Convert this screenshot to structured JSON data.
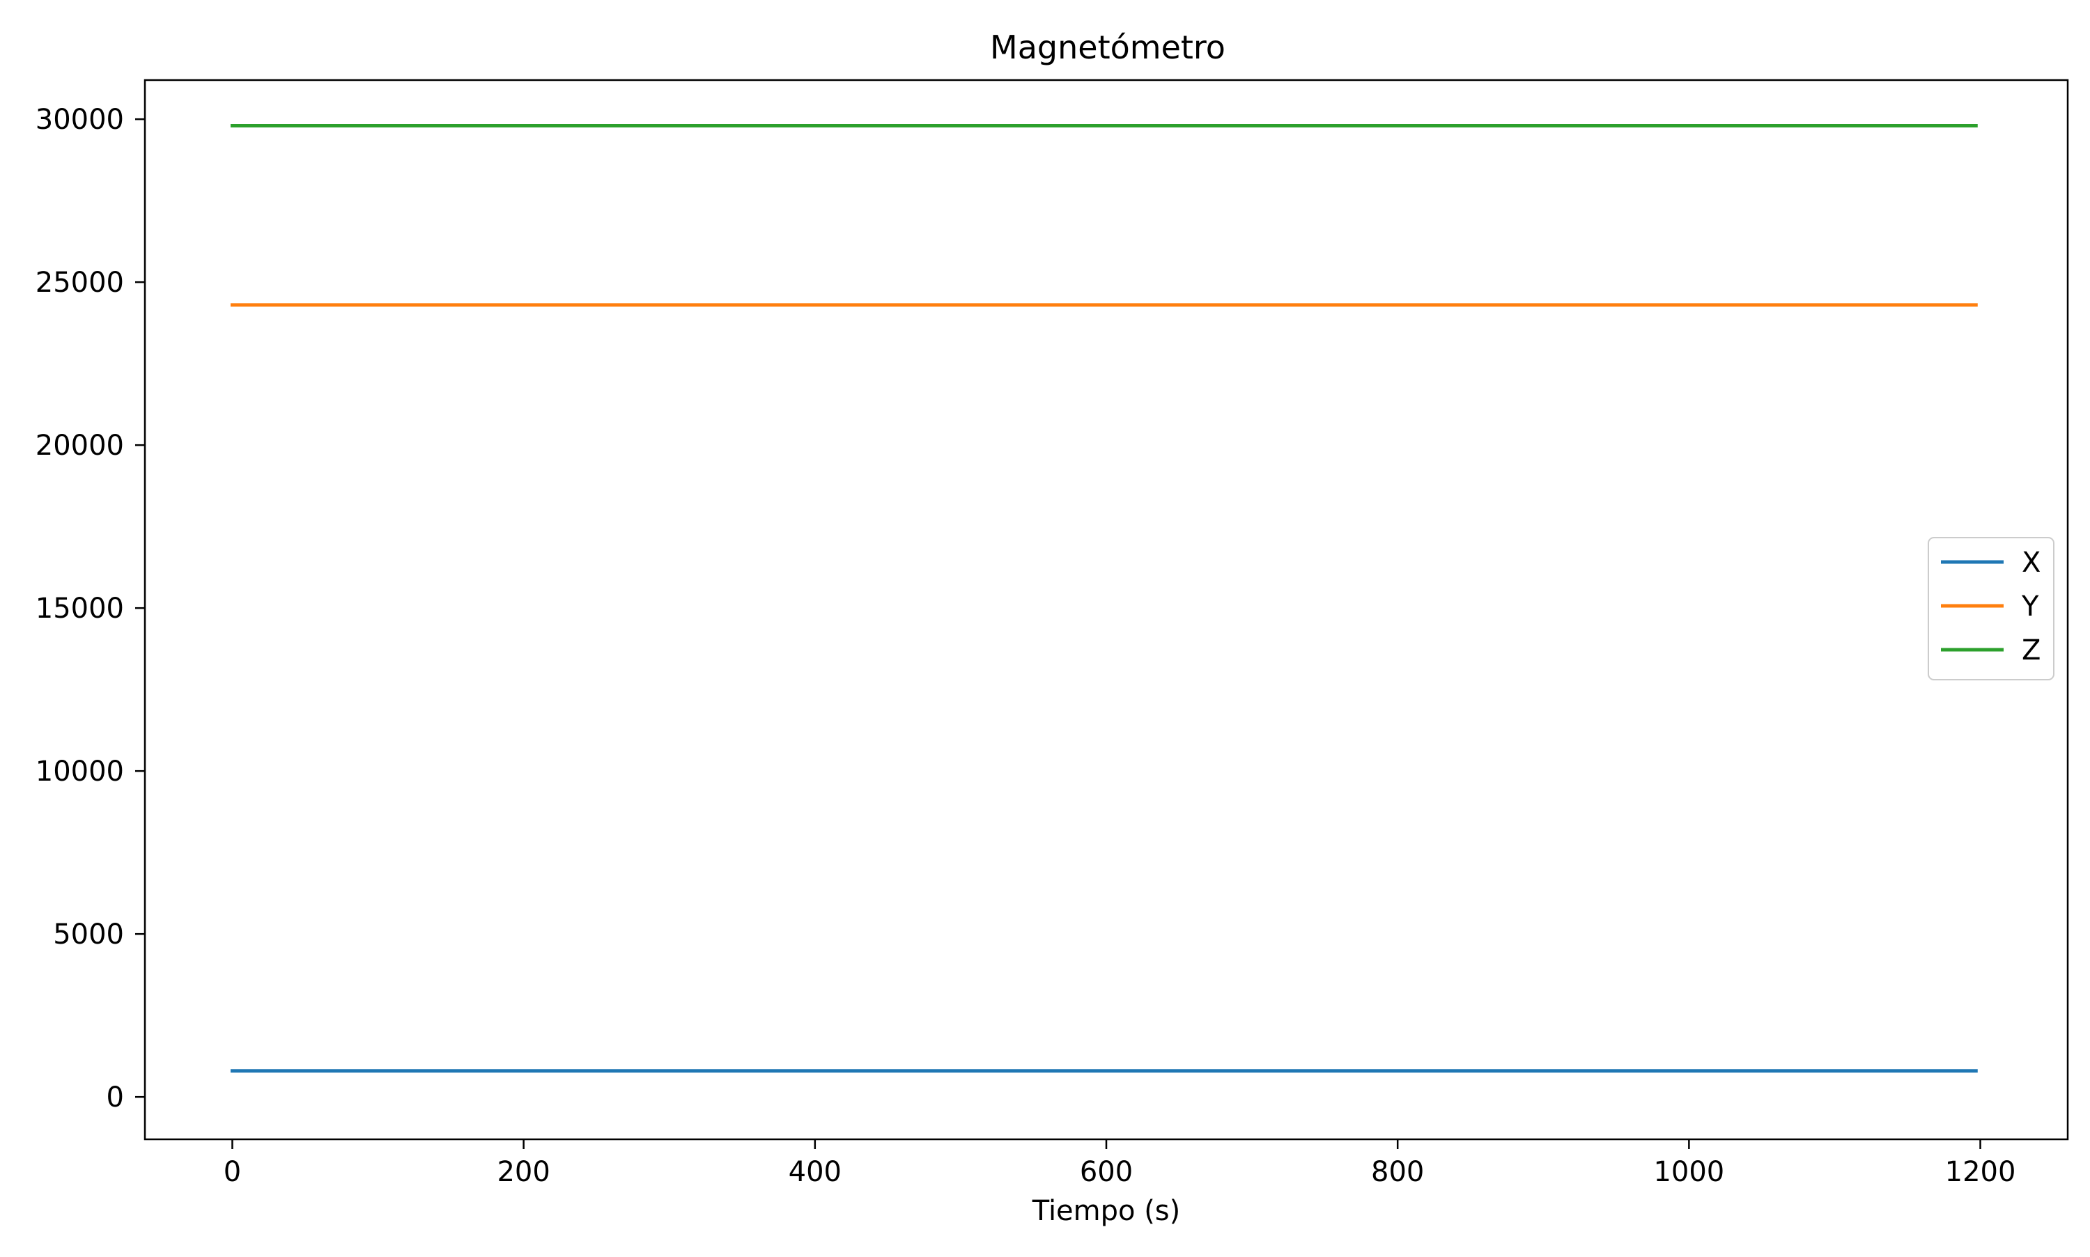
{
  "chart_data": {
    "type": "line",
    "title": "Magnetómetro",
    "xlabel": "Tiempo (s)",
    "ylabel": "",
    "xlim": [
      -60,
      1260
    ],
    "ylim": [
      -1300,
      31200
    ],
    "x_ticks": [
      0,
      200,
      400,
      600,
      800,
      1000,
      1200
    ],
    "y_ticks": [
      0,
      5000,
      10000,
      15000,
      20000,
      25000,
      30000
    ],
    "x": [
      0,
      1197
    ],
    "series": [
      {
        "name": "X",
        "color": "#1f77b4",
        "values": [
          800,
          800
        ]
      },
      {
        "name": "Y",
        "color": "#ff7f0e",
        "values": [
          24300,
          24300
        ]
      },
      {
        "name": "Z",
        "color": "#2ca02c",
        "values": [
          29800,
          29800
        ]
      }
    ],
    "legend_position": "center-right",
    "grid": false
  }
}
